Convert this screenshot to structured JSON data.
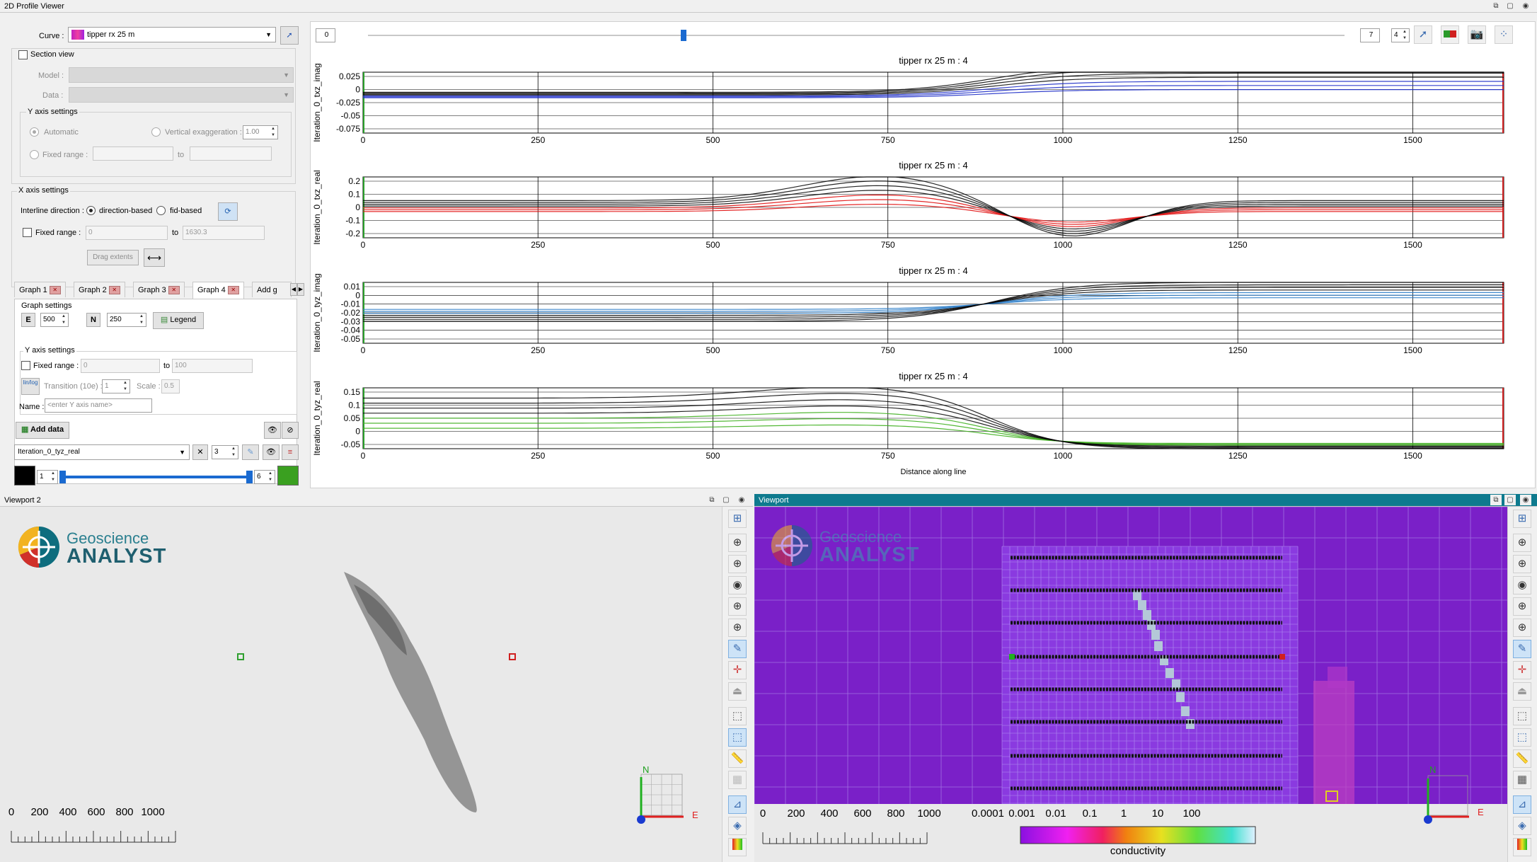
{
  "profile": {
    "title": "2D Profile Viewer"
  },
  "left": {
    "curve_label": "Curve :",
    "curve_value": "tipper rx 25 m",
    "section_view": "Section view",
    "model_label": "Model :",
    "data_label": "Data :",
    "y_axis_settings": "Y axis settings",
    "automatic": "Automatic",
    "vertical_exaggeration": "Vertical exaggeration :",
    "ve_value": "1.00",
    "fixed_range": "Fixed range :",
    "to": "to",
    "x_axis_settings": "X axis settings",
    "interline_direction": "Interline direction :",
    "direction_based": "direction-based",
    "fid_based": "fid-based",
    "x_fixed_range": "Fixed range :",
    "x_from": "0",
    "x_to": "1630.3",
    "drag_extents": "Drag extents",
    "tabs": [
      "Graph 1",
      "Graph 2",
      "Graph 3",
      "Graph 4",
      "Add g"
    ],
    "graph_settings": "Graph settings",
    "e_value": "500",
    "n_value": "250",
    "legend": "Legend",
    "y_axis_settings2": "Y axis settings",
    "fixed_range2": "Fixed range :",
    "y_from": "0",
    "to2": "to",
    "y_to": "100",
    "lin_log": "lin/log",
    "transition": "Transition (10e) :",
    "transition_value": "1",
    "scale": "Scale :",
    "scale_value": "0.5",
    "name": "Name :",
    "name_placeholder": "<enter Y axis name>",
    "add_data": "Add data",
    "data_value": "Iteration_0_tyz_real",
    "count_value": "3",
    "min_value": "1",
    "max_value": "6"
  },
  "slider": {
    "min": "0",
    "max": "7",
    "value": 4,
    "spin": "4"
  },
  "plots": [
    {
      "title": "tipper rx 25 m : 4",
      "ylabel": "Iteration_0_txz_imag",
      "yticks": [
        "0.025",
        "0",
        "-0.025",
        "-0.05",
        "-0.075"
      ],
      "color": "#2030c8"
    },
    {
      "title": "tipper rx 25 m : 4",
      "ylabel": "Iteration_0_txz_real",
      "yticks": [
        "0.2",
        "0.1",
        "0",
        "-0.1",
        "-0.2"
      ],
      "color": "#e01010"
    },
    {
      "title": "tipper rx 25 m : 4",
      "ylabel": "Iteration_0_tyz_imag",
      "yticks": [
        "0.01",
        "0",
        "-0.01",
        "-0.02",
        "-0.03",
        "-0.04",
        "-0.05"
      ],
      "color": "#2a7cc8"
    },
    {
      "title": "tipper rx 25 m : 4",
      "ylabel": "Iteration_0_tyz_real",
      "yticks": [
        "0.15",
        "0.1",
        "0.05",
        "0",
        "-0.05"
      ],
      "color": "#40b020"
    }
  ],
  "xticks": [
    "0",
    "250",
    "500",
    "750",
    "1000",
    "1250",
    "1500"
  ],
  "xlabel": "Distance along line",
  "viewport2": {
    "title": "Viewport 2",
    "logo_top": "Geoscience",
    "logo_bottom": "ANALYST",
    "scale": [
      "0",
      "200",
      "400",
      "600",
      "800",
      "1000"
    ],
    "north": "N",
    "east": "E"
  },
  "viewport": {
    "title": "Viewport",
    "logo_top": "Geoscience",
    "logo_bottom": "ANALYST",
    "scale": [
      "0",
      "200",
      "400",
      "600",
      "800",
      "1000"
    ],
    "legend_ticks": [
      "0.0001",
      "0.001",
      "0.01",
      "0.1",
      "1",
      "10",
      "100"
    ],
    "legend_label": "conductivity",
    "north": "N",
    "east": "E"
  }
}
